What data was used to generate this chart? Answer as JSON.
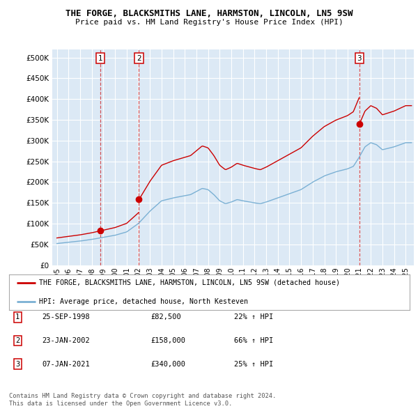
{
  "title1": "THE FORGE, BLACKSMITHS LANE, HARMSTON, LINCOLN, LN5 9SW",
  "title2": "Price paid vs. HM Land Registry's House Price Index (HPI)",
  "background_color": "#ffffff",
  "plot_bg_color": "#dce9f5",
  "grid_color": "#ffffff",
  "red_line_color": "#cc0000",
  "blue_line_color": "#7ab0d4",
  "sale_marker_color": "#cc0000",
  "transactions": [
    {
      "num": 1,
      "date_label": "25-SEP-1998",
      "price": 82500,
      "pct": "22%",
      "year_x": 1998.73
    },
    {
      "num": 2,
      "date_label": "23-JAN-2002",
      "price": 158000,
      "pct": "66%",
      "year_x": 2002.06
    },
    {
      "num": 3,
      "date_label": "07-JAN-2021",
      "price": 340000,
      "pct": "25%",
      "year_x": 2021.02
    }
  ],
  "legend_label_red": "THE FORGE, BLACKSMITHS LANE, HARMSTON, LINCOLN, LN5 9SW (detached house)",
  "legend_label_blue": "HPI: Average price, detached house, North Kesteven",
  "footer1": "Contains HM Land Registry data © Crown copyright and database right 2024.",
  "footer2": "This data is licensed under the Open Government Licence v3.0.",
  "ylim": [
    0,
    520000
  ],
  "yticks": [
    0,
    50000,
    100000,
    150000,
    200000,
    250000,
    300000,
    350000,
    400000,
    450000,
    500000
  ],
  "xlim_start": 1994.6,
  "xlim_end": 2025.7,
  "xticks": [
    1995,
    1996,
    1997,
    1998,
    1999,
    2000,
    2001,
    2002,
    2003,
    2004,
    2005,
    2006,
    2007,
    2008,
    2009,
    2010,
    2011,
    2012,
    2013,
    2014,
    2015,
    2016,
    2017,
    2018,
    2019,
    2020,
    2021,
    2022,
    2023,
    2024,
    2025
  ]
}
